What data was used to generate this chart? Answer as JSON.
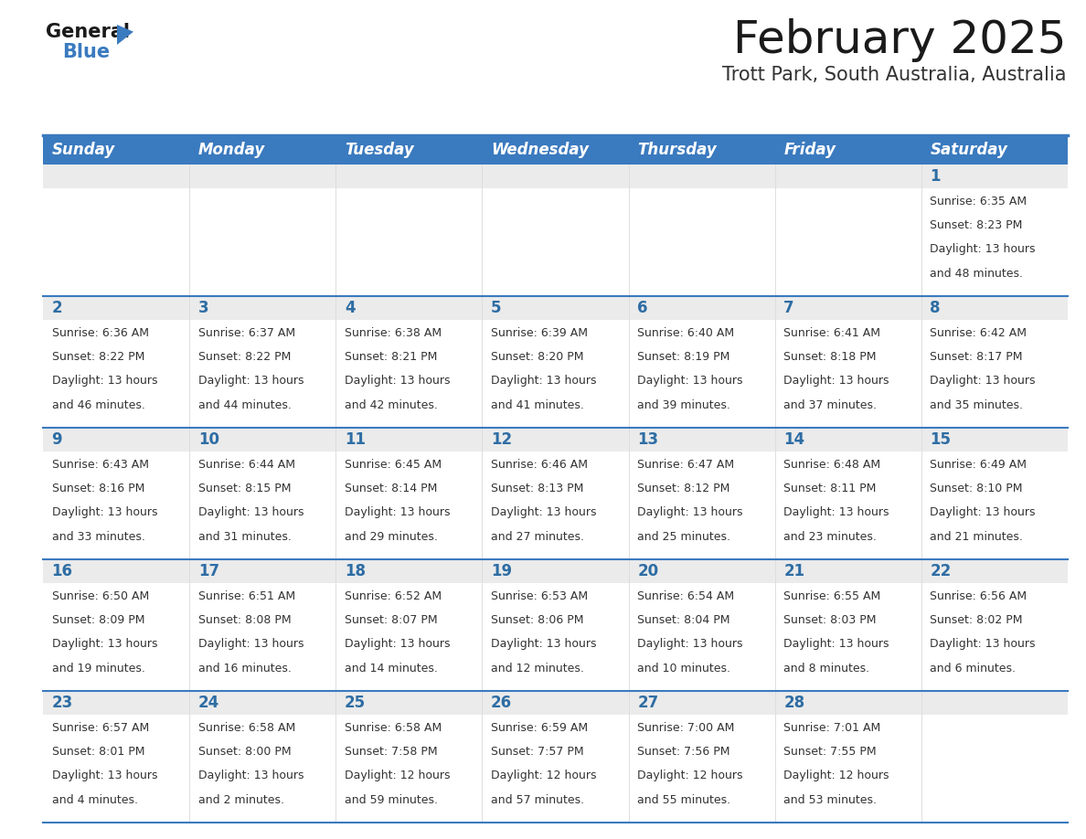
{
  "title": "February 2025",
  "subtitle": "Trott Park, South Australia, Australia",
  "header_bg": "#3a7abf",
  "header_text_color": "#FFFFFF",
  "day_num_bg": "#EBEBEB",
  "cell_bg": "#FFFFFF",
  "day_number_color": "#2E6DA4",
  "info_text_color": "#333333",
  "border_color": "#3a7abf",
  "separator_color": "#cccccc",
  "days_of_week": [
    "Sunday",
    "Monday",
    "Tuesday",
    "Wednesday",
    "Thursday",
    "Friday",
    "Saturday"
  ],
  "weeks": [
    [
      {
        "day": null,
        "sunrise": null,
        "sunset": null,
        "daylight": null
      },
      {
        "day": null,
        "sunrise": null,
        "sunset": null,
        "daylight": null
      },
      {
        "day": null,
        "sunrise": null,
        "sunset": null,
        "daylight": null
      },
      {
        "day": null,
        "sunrise": null,
        "sunset": null,
        "daylight": null
      },
      {
        "day": null,
        "sunrise": null,
        "sunset": null,
        "daylight": null
      },
      {
        "day": null,
        "sunrise": null,
        "sunset": null,
        "daylight": null
      },
      {
        "day": 1,
        "sunrise": "6:35 AM",
        "sunset": "8:23 PM",
        "daylight": "13 hours and 48 minutes."
      }
    ],
    [
      {
        "day": 2,
        "sunrise": "6:36 AM",
        "sunset": "8:22 PM",
        "daylight": "13 hours and 46 minutes."
      },
      {
        "day": 3,
        "sunrise": "6:37 AM",
        "sunset": "8:22 PM",
        "daylight": "13 hours and 44 minutes."
      },
      {
        "day": 4,
        "sunrise": "6:38 AM",
        "sunset": "8:21 PM",
        "daylight": "13 hours and 42 minutes."
      },
      {
        "day": 5,
        "sunrise": "6:39 AM",
        "sunset": "8:20 PM",
        "daylight": "13 hours and 41 minutes."
      },
      {
        "day": 6,
        "sunrise": "6:40 AM",
        "sunset": "8:19 PM",
        "daylight": "13 hours and 39 minutes."
      },
      {
        "day": 7,
        "sunrise": "6:41 AM",
        "sunset": "8:18 PM",
        "daylight": "13 hours and 37 minutes."
      },
      {
        "day": 8,
        "sunrise": "6:42 AM",
        "sunset": "8:17 PM",
        "daylight": "13 hours and 35 minutes."
      }
    ],
    [
      {
        "day": 9,
        "sunrise": "6:43 AM",
        "sunset": "8:16 PM",
        "daylight": "13 hours and 33 minutes."
      },
      {
        "day": 10,
        "sunrise": "6:44 AM",
        "sunset": "8:15 PM",
        "daylight": "13 hours and 31 minutes."
      },
      {
        "day": 11,
        "sunrise": "6:45 AM",
        "sunset": "8:14 PM",
        "daylight": "13 hours and 29 minutes."
      },
      {
        "day": 12,
        "sunrise": "6:46 AM",
        "sunset": "8:13 PM",
        "daylight": "13 hours and 27 minutes."
      },
      {
        "day": 13,
        "sunrise": "6:47 AM",
        "sunset": "8:12 PM",
        "daylight": "13 hours and 25 minutes."
      },
      {
        "day": 14,
        "sunrise": "6:48 AM",
        "sunset": "8:11 PM",
        "daylight": "13 hours and 23 minutes."
      },
      {
        "day": 15,
        "sunrise": "6:49 AM",
        "sunset": "8:10 PM",
        "daylight": "13 hours and 21 minutes."
      }
    ],
    [
      {
        "day": 16,
        "sunrise": "6:50 AM",
        "sunset": "8:09 PM",
        "daylight": "13 hours and 19 minutes."
      },
      {
        "day": 17,
        "sunrise": "6:51 AM",
        "sunset": "8:08 PM",
        "daylight": "13 hours and 16 minutes."
      },
      {
        "day": 18,
        "sunrise": "6:52 AM",
        "sunset": "8:07 PM",
        "daylight": "13 hours and 14 minutes."
      },
      {
        "day": 19,
        "sunrise": "6:53 AM",
        "sunset": "8:06 PM",
        "daylight": "13 hours and 12 minutes."
      },
      {
        "day": 20,
        "sunrise": "6:54 AM",
        "sunset": "8:04 PM",
        "daylight": "13 hours and 10 minutes."
      },
      {
        "day": 21,
        "sunrise": "6:55 AM",
        "sunset": "8:03 PM",
        "daylight": "13 hours and 8 minutes."
      },
      {
        "day": 22,
        "sunrise": "6:56 AM",
        "sunset": "8:02 PM",
        "daylight": "13 hours and 6 minutes."
      }
    ],
    [
      {
        "day": 23,
        "sunrise": "6:57 AM",
        "sunset": "8:01 PM",
        "daylight": "13 hours and 4 minutes."
      },
      {
        "day": 24,
        "sunrise": "6:58 AM",
        "sunset": "8:00 PM",
        "daylight": "13 hours and 2 minutes."
      },
      {
        "day": 25,
        "sunrise": "6:58 AM",
        "sunset": "7:58 PM",
        "daylight": "12 hours and 59 minutes."
      },
      {
        "day": 26,
        "sunrise": "6:59 AM",
        "sunset": "7:57 PM",
        "daylight": "12 hours and 57 minutes."
      },
      {
        "day": 27,
        "sunrise": "7:00 AM",
        "sunset": "7:56 PM",
        "daylight": "12 hours and 55 minutes."
      },
      {
        "day": 28,
        "sunrise": "7:01 AM",
        "sunset": "7:55 PM",
        "daylight": "12 hours and 53 minutes."
      },
      {
        "day": null,
        "sunrise": null,
        "sunset": null,
        "daylight": null
      }
    ]
  ],
  "fig_width": 11.88,
  "fig_height": 9.18,
  "title_fontsize": 36,
  "subtitle_fontsize": 15,
  "header_fontsize": 12,
  "day_num_fontsize": 12,
  "info_fontsize": 9
}
